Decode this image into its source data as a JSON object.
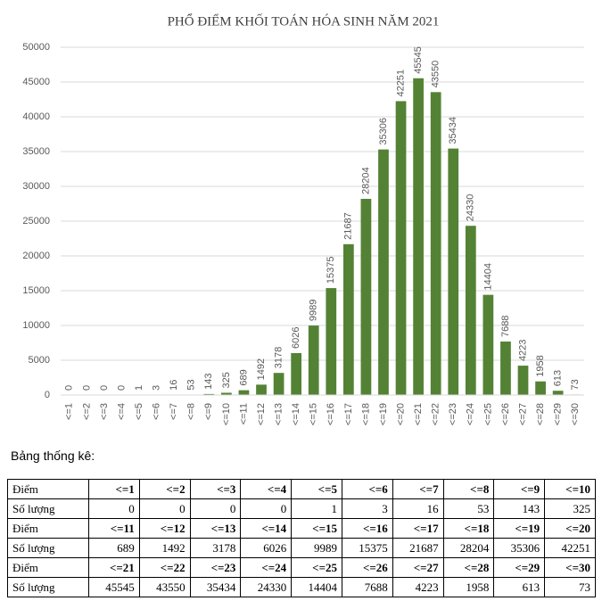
{
  "chart_data": {
    "type": "bar",
    "title": "PHỔ ĐIỂM KHỐI TOÁN HÓA SINH NĂM 2021",
    "categories": [
      "<=1",
      "<=2",
      "<=3",
      "<=4",
      "<=5",
      "<=6",
      "<=7",
      "<=8",
      "<=9",
      "<=10",
      "<=11",
      "<=12",
      "<=13",
      "<=14",
      "<=15",
      "<=16",
      "<=17",
      "<=18",
      "<=19",
      "<=20",
      "<=21",
      "<=22",
      "<=23",
      "<=24",
      "<=25",
      "<=26",
      "<=27",
      "<=28",
      "<=29",
      "<=30"
    ],
    "values": [
      0,
      0,
      0,
      0,
      1,
      3,
      16,
      53,
      143,
      325,
      689,
      1492,
      3178,
      6026,
      9989,
      15375,
      21687,
      28204,
      35306,
      42251,
      45545,
      43550,
      35434,
      24330,
      14404,
      7688,
      4223,
      1958,
      613,
      73
    ],
    "color": "#548235",
    "ylim": [
      0,
      50000
    ],
    "yticks": [
      0,
      5000,
      10000,
      15000,
      20000,
      25000,
      30000,
      35000,
      40000,
      45000,
      50000
    ],
    "grid": true
  },
  "table": {
    "title": "Bảng thống kê:",
    "row_labels": [
      "Điểm",
      "Số lượng"
    ]
  }
}
